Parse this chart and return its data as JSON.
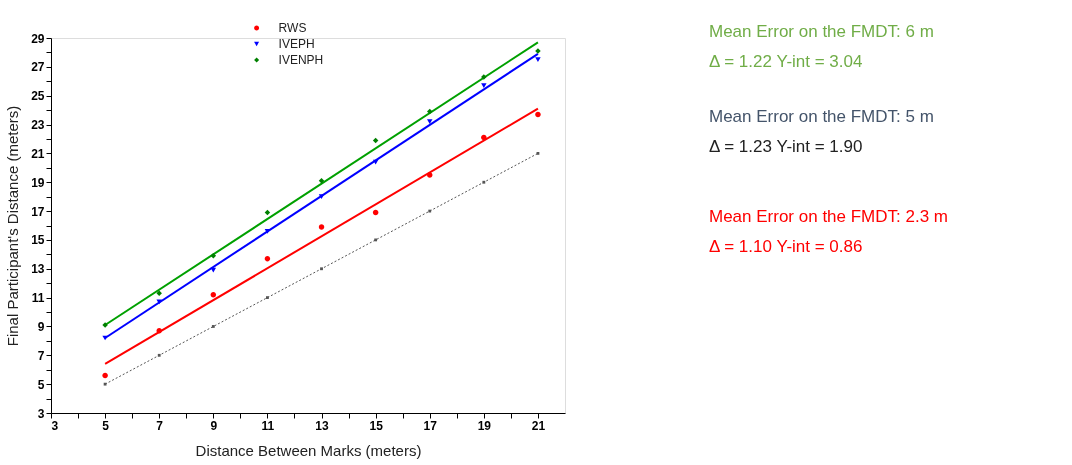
{
  "chart_data": {
    "type": "scatter",
    "xlabel": "Distance Between Marks (meters)",
    "ylabel": "Final Participant's Distance (meters)",
    "xlim": [
      3,
      22
    ],
    "ylim": [
      3,
      29
    ],
    "xticks": [
      3,
      {
        "value": 4,
        "label": null
      },
      5,
      {
        "value": 6,
        "label": null
      },
      7,
      {
        "value": 8,
        "label": null
      },
      9,
      {
        "value": 10,
        "label": null
      },
      11,
      {
        "value": 12,
        "label": null
      },
      13,
      {
        "value": 14,
        "label": null
      },
      15,
      {
        "value": 16,
        "label": null
      },
      17,
      {
        "value": 18,
        "label": null
      },
      19,
      {
        "value": 20,
        "label": null
      },
      21
    ],
    "yticks": [
      3,
      {
        "value": 4,
        "label": null
      },
      5,
      {
        "value": 6,
        "label": null
      },
      7,
      {
        "value": 8,
        "label": null
      },
      9,
      {
        "value": 10,
        "label": null
      },
      11,
      {
        "value": 12,
        "label": null
      },
      13,
      {
        "value": 14,
        "label": null
      },
      15,
      {
        "value": 16,
        "label": null
      },
      17,
      {
        "value": 18,
        "label": null
      },
      19,
      {
        "value": 20,
        "label": null
      },
      21,
      {
        "value": 22,
        "label": null
      },
      23,
      {
        "value": 24,
        "label": null
      },
      25,
      {
        "value": 26,
        "label": null
      },
      27,
      {
        "value": 28,
        "label": null
      },
      29
    ],
    "grid": false,
    "legend": "top",
    "x": [
      5,
      7,
      9,
      11,
      13,
      15,
      17,
      19,
      21
    ],
    "series": [
      {
        "name": "RWS",
        "color": "#ff0000",
        "marker": "circle",
        "values": [
          5.6,
          8.7,
          11.2,
          13.7,
          15.9,
          16.9,
          19.5,
          22.1,
          23.7
        ]
      },
      {
        "name": "IVEPH",
        "color": "#0000ff",
        "marker": "triangle-down",
        "values": [
          8.2,
          10.7,
          12.9,
          15.6,
          18.0,
          20.4,
          23.2,
          25.7,
          27.5
        ]
      },
      {
        "name": "IVENPH",
        "color": "#008000",
        "marker": "diamond",
        "values": [
          9.1,
          11.3,
          13.9,
          16.9,
          19.1,
          21.9,
          23.9,
          26.3,
          28.1
        ]
      },
      {
        "type": "line",
        "color": "#ff0000",
        "line_style": "solid",
        "x": [
          5,
          21
        ],
        "values": [
          6.4,
          24.1
        ]
      },
      {
        "type": "line",
        "color": "#0000ff",
        "line_style": "solid",
        "x": [
          5,
          21
        ],
        "values": [
          8.2,
          27.9
        ]
      },
      {
        "type": "line",
        "color": "#00a000",
        "line_style": "solid",
        "x": [
          5,
          21
        ],
        "values": [
          9.1,
          28.7
        ]
      },
      {
        "type": "line",
        "color": "#555555",
        "line_style": "dotted",
        "marker": "square",
        "x": [
          5,
          7,
          9,
          11,
          13,
          15,
          17,
          19,
          21
        ],
        "values": [
          5,
          7,
          9,
          11,
          13,
          15,
          17,
          19,
          21
        ]
      }
    ],
    "annotations": [
      "Mean Error on the FMDT: 6 m",
      "Δ = 1.22 Y-int = 3.04",
      "Mean Error on the FMDT: 5 m",
      "Δ = 1.23 Y-int = 1.90",
      "Mean Error on the FMDT: 2.3 m",
      "Δ = 1.10 Y-int = 0.86"
    ]
  }
}
